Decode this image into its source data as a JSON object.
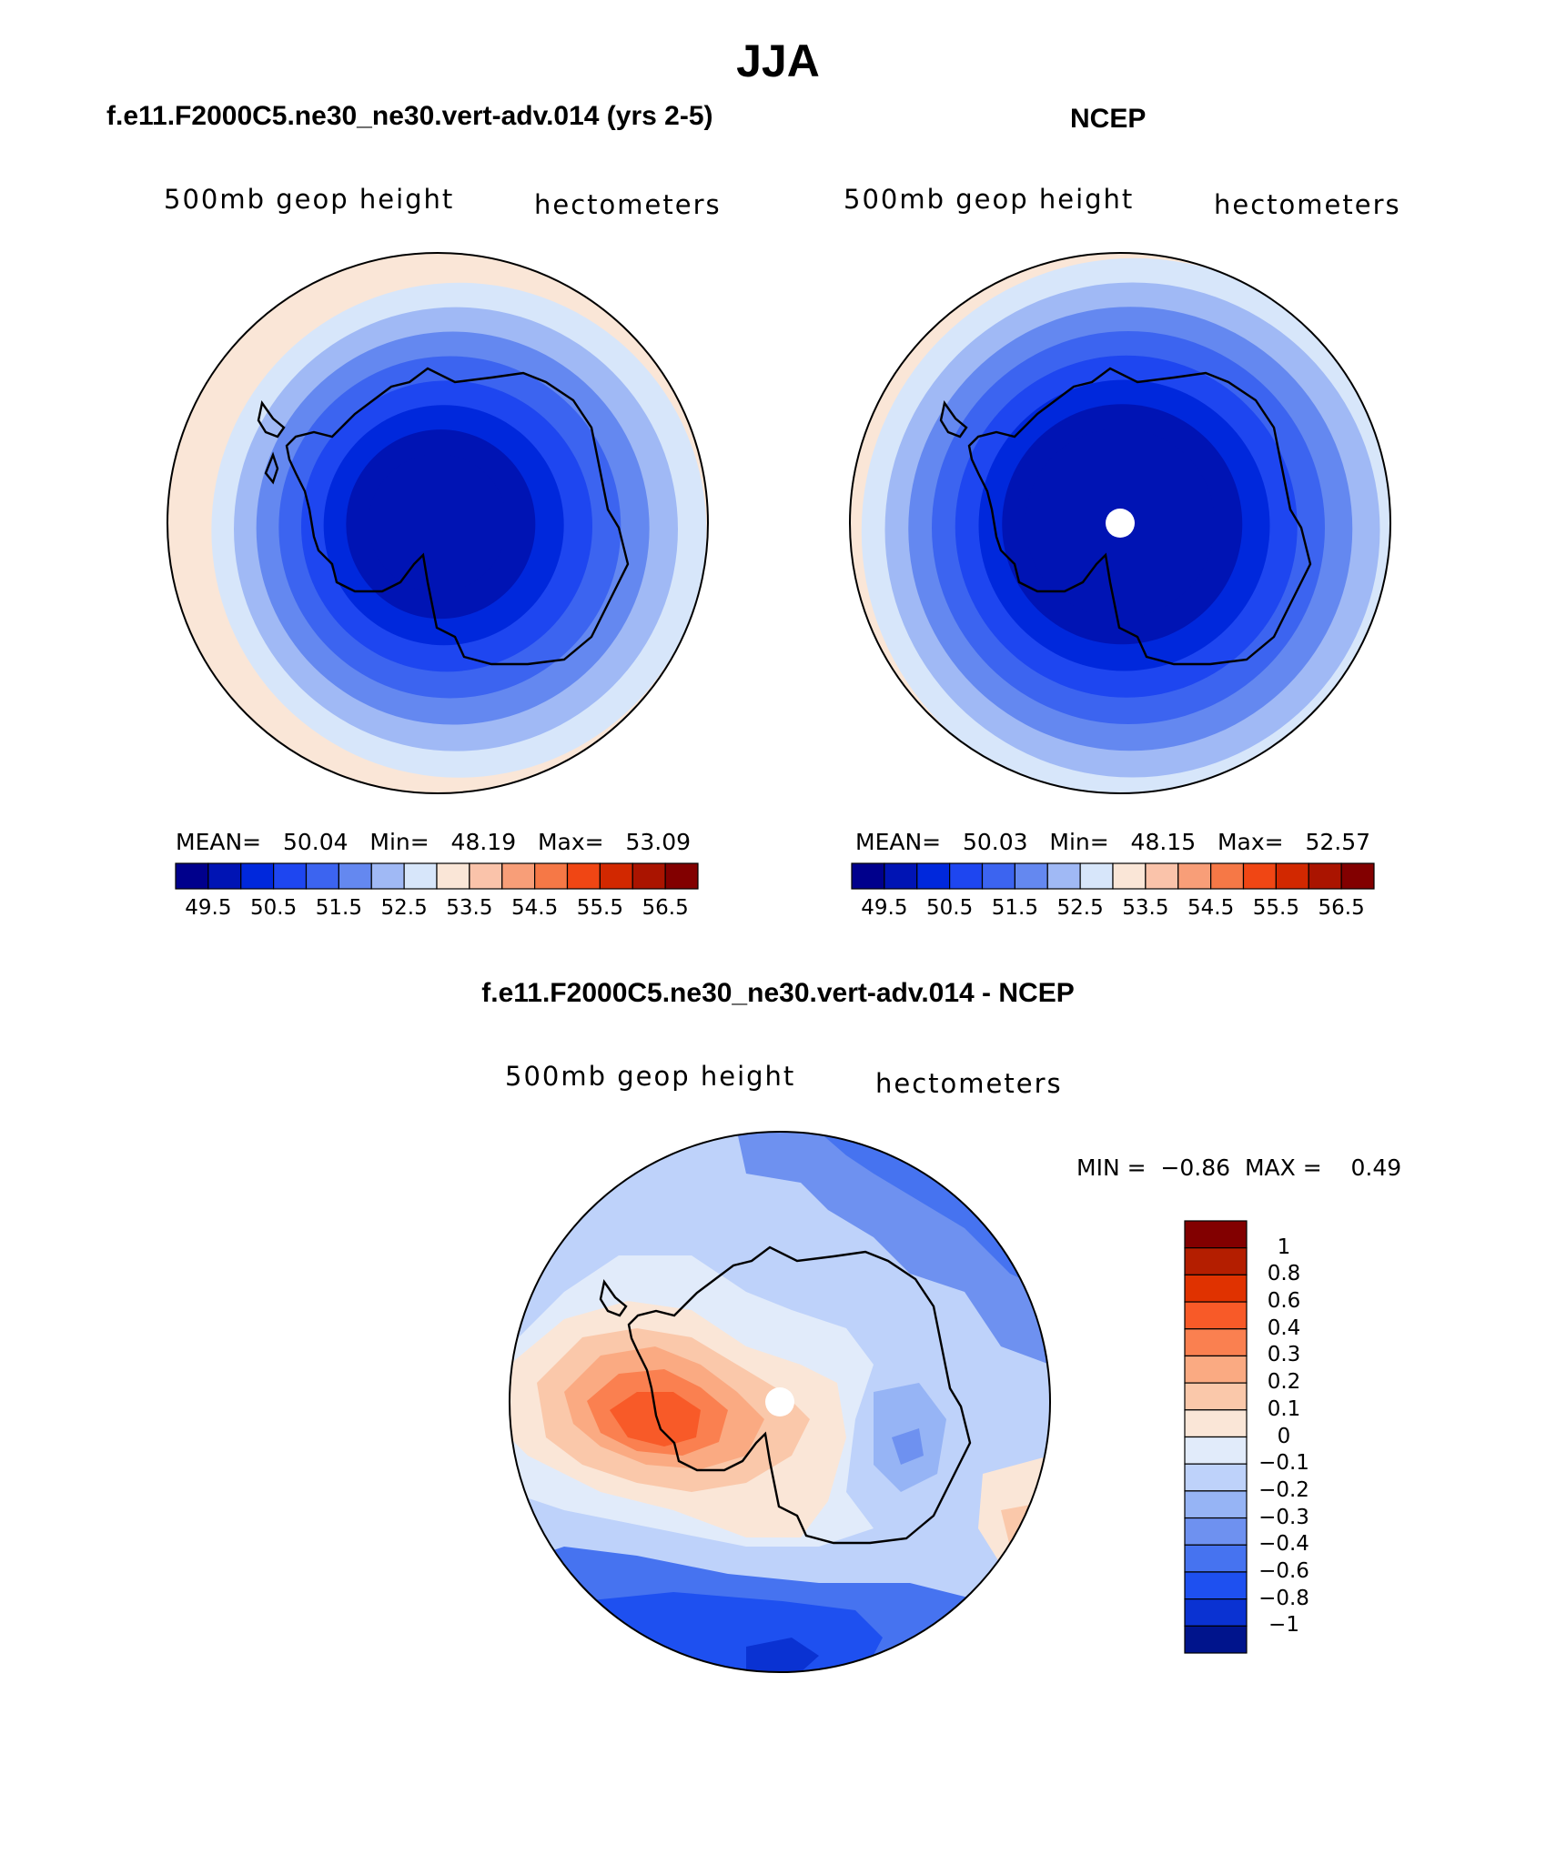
{
  "title": "JJA",
  "panels": [
    {
      "title": "f.e11.F2000C5.ne30_ne30.vert-adv.014 (yrs 2-5)",
      "left_label": "500mb geop height",
      "right_label": "hectometers",
      "stats": {
        "mean_label": "MEAN=",
        "mean": "50.04",
        "min_label": "Min=",
        "min": "48.19",
        "max_label": "Max=",
        "max": "53.09"
      },
      "rings": [
        49.5,
        49.5,
        50.0,
        50.5,
        51.0,
        51.5,
        52.0,
        52.5,
        53.0
      ]
    },
    {
      "title": "NCEP",
      "left_label": "500mb geop height",
      "right_label": "hectometers",
      "stats": {
        "mean_label": "MEAN=",
        "mean": "50.03",
        "min_label": "Min=",
        "min": "48.15",
        "max_label": "Max=",
        "max": "52.57"
      },
      "rings": [
        49.5,
        49.5,
        50.0,
        50.5,
        51.0,
        51.5,
        52.0,
        52.5
      ],
      "pole_hole": true
    }
  ],
  "abs_colorbar": {
    "colors": [
      "#00008c",
      "#0014b4",
      "#0028dc",
      "#1e46f0",
      "#3c64f0",
      "#6488f0",
      "#a0b9f5",
      "#d7e6fa",
      "#fae6d7",
      "#fac3aa",
      "#f89e78",
      "#f67846",
      "#f04614",
      "#d22800",
      "#aa1400",
      "#820000"
    ],
    "labels": [
      "49.5",
      "50.5",
      "51.5",
      "52.5",
      "53.5",
      "54.5",
      "55.5",
      "56.5"
    ]
  },
  "diff_panel": {
    "title": "f.e11.F2000C5.ne30_ne30.vert-adv.014 - NCEP",
    "left_label": "500mb geop height",
    "right_label": "hectometers",
    "min_label": "MIN =",
    "min": "−0.86",
    "max_label": "MAX =",
    "max": "0.49",
    "colorbar_colors": [
      "#820000",
      "#b41e00",
      "#e03200",
      "#f85a28",
      "#fa8050",
      "#faaa82",
      "#fac8aa",
      "#fae6d7",
      "#e1ebfa",
      "#bed2fa",
      "#96b4f5",
      "#6e91f0",
      "#4673f0",
      "#1e50f0",
      "#0a32d2",
      "#00148c"
    ],
    "colorbar_labels": [
      "1",
      "0.8",
      "0.6",
      "0.4",
      "0.3",
      "0.2",
      "0.1",
      "0",
      "−0.1",
      "−0.2",
      "−0.3",
      "−0.4",
      "−0.6",
      "−0.8",
      "−1"
    ]
  },
  "chart_data": {
    "type": "heatmap",
    "title": "JJA",
    "variable": "500mb geop height",
    "units": "hectometers",
    "panels": [
      {
        "name": "f.e11.F2000C5.ne30_ne30.vert-adv.014 (yrs 2-5)",
        "mean": 50.04,
        "min": 48.19,
        "max": 53.09
      },
      {
        "name": "NCEP",
        "mean": 50.03,
        "min": 48.15,
        "max": 52.57
      },
      {
        "name": "f.e11.F2000C5.ne30_ne30.vert-adv.014 - NCEP",
        "min": -0.86,
        "max": 0.49
      }
    ],
    "abs_levels": [
      49.5,
      50,
      50.5,
      51,
      51.5,
      52,
      52.5,
      53,
      53.5,
      54,
      54.5,
      55,
      55.5,
      56,
      56.5
    ],
    "diff_levels": [
      -1,
      -0.8,
      -0.6,
      -0.4,
      -0.3,
      -0.2,
      -0.1,
      0,
      0.1,
      0.2,
      0.3,
      0.4,
      0.6,
      0.8,
      1
    ]
  }
}
